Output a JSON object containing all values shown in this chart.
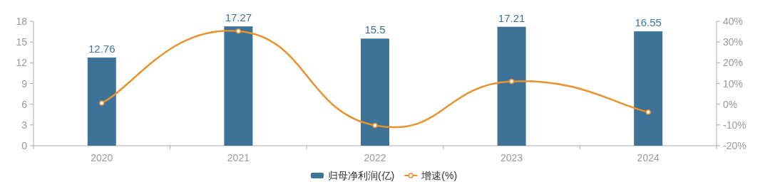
{
  "chart_data": {
    "type": "bar",
    "categories": [
      "2020",
      "2021",
      "2022",
      "2023",
      "2024"
    ],
    "series": [
      {
        "name": "归母净利润(亿)",
        "color": "#3d7399",
        "values": [
          12.76,
          17.27,
          15.5,
          17.21,
          16.55
        ],
        "value_labels": [
          "12.76",
          "17.27",
          "15.5",
          "17.21",
          "16.55"
        ]
      },
      {
        "name": "增速(%)",
        "type": "line",
        "axis": "y2",
        "color": "#e8922e",
        "marker": "circle",
        "values": [
          0.6,
          35.3,
          -10.2,
          11.0,
          -3.8
        ]
      }
    ],
    "ylim": [
      0,
      18
    ],
    "yticks": [
      0,
      3,
      6,
      9,
      12,
      15,
      18
    ],
    "y2lim": [
      -20,
      40
    ],
    "y2ticks": [
      {
        "value": -20,
        "label": "-20%"
      },
      {
        "value": -10,
        "label": "-10%"
      },
      {
        "value": 0,
        "label": "0%"
      },
      {
        "value": 10,
        "label": "10%"
      },
      {
        "value": 20,
        "label": "20%"
      },
      {
        "value": 30,
        "label": "30%"
      },
      {
        "value": 40,
        "label": "40%"
      }
    ],
    "legend": "bottom",
    "grid": false
  }
}
